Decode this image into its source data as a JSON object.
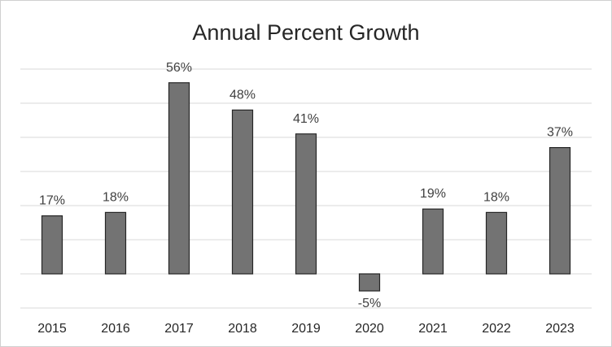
{
  "chart_data": {
    "type": "bar",
    "title": "Annual Percent Growth",
    "categories": [
      "2015",
      "2016",
      "2017",
      "2018",
      "2019",
      "2020",
      "2021",
      "2022",
      "2023"
    ],
    "values": [
      17,
      18,
      56,
      48,
      41,
      -5,
      19,
      18,
      37
    ],
    "data_labels": [
      "17%",
      "18%",
      "56%",
      "48%",
      "41%",
      "-5%",
      "19%",
      "18%",
      "37%"
    ],
    "ylim": [
      -10,
      60
    ],
    "grid_step": 10,
    "grid": true,
    "legend": "none",
    "bar_color": "#737373",
    "xlabel": "",
    "ylabel": ""
  }
}
